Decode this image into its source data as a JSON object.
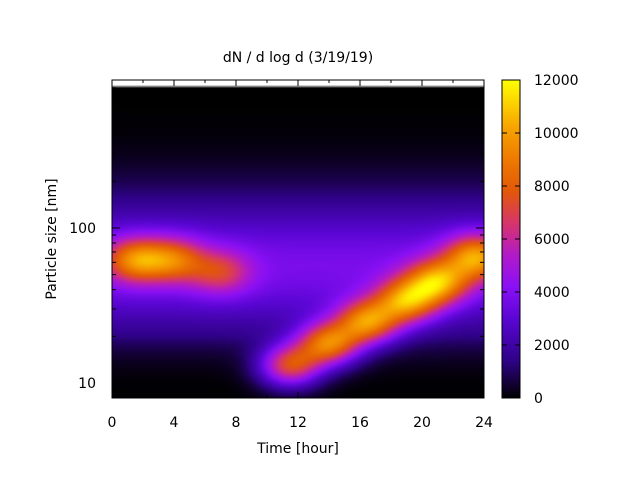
{
  "chart_data": {
    "type": "heatmap",
    "title": "dN / d log d (3/19/19)",
    "xlabel": "Time [hour]",
    "ylabel": "Particle size [nm]",
    "x_range": [
      0,
      24
    ],
    "y_range": [
      8,
      900
    ],
    "y_scale": "log",
    "x_ticks": [
      "0",
      "4",
      "8",
      "12",
      "16",
      "20",
      "24"
    ],
    "x_tick_values": [
      0,
      4,
      8,
      12,
      16,
      20,
      24
    ],
    "y_ticks": [
      "10",
      "100"
    ],
    "y_tick_values": [
      10,
      100
    ],
    "colorbar": {
      "range": [
        0,
        12000
      ],
      "ticks": [
        "0",
        "2000",
        "4000",
        "6000",
        "8000",
        "10000",
        "12000"
      ],
      "tick_values": [
        0,
        2000,
        4000,
        6000,
        8000,
        10000,
        12000
      ],
      "colormap": "gnuplot"
    },
    "features": [
      {
        "time_hour": 1.5,
        "size_nm": 62,
        "value": 7500
      },
      {
        "time_hour": 4.0,
        "size_nm": 62,
        "value": 6500
      },
      {
        "time_hour": 7.0,
        "size_nm": 52,
        "value": 5300
      },
      {
        "time_hour": 11.5,
        "size_nm": 13,
        "value": 7000
      },
      {
        "time_hour": 14.0,
        "size_nm": 18,
        "value": 8200
      },
      {
        "time_hour": 16.5,
        "size_nm": 25,
        "value": 8300
      },
      {
        "time_hour": 19.0,
        "size_nm": 34,
        "value": 8200
      },
      {
        "time_hour": 21.0,
        "size_nm": 45,
        "value": 8500
      },
      {
        "time_hour": 23.5,
        "size_nm": 65,
        "value": 8300
      }
    ]
  }
}
